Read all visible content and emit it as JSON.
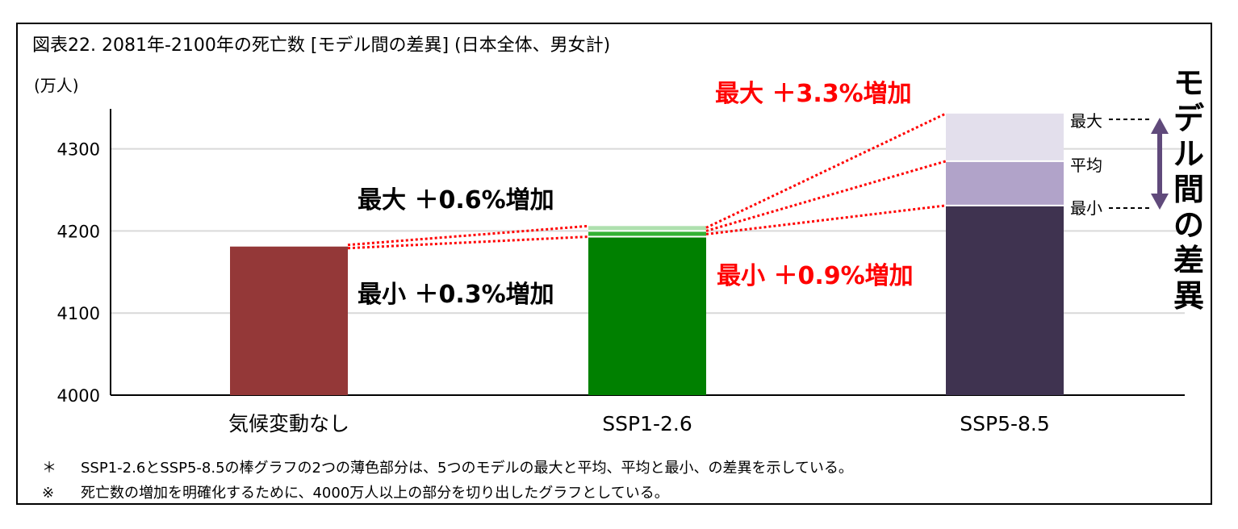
{
  "title": "図表22. 2081年-2100年の死亡数 [モデル間の差異] (日本全体、男女計)",
  "unit": "(万人)",
  "side_label": "モデル間の差異",
  "legend_labels": {
    "max": "最大",
    "avg": "平均",
    "min": "最小"
  },
  "annotations": {
    "ssp126_max": "最大 ＋0.6%増加",
    "ssp126_min": "最小 ＋0.3%増加",
    "ssp585_max": "最大 ＋3.3%増加",
    "ssp585_min": "最小 ＋0.9%増加"
  },
  "notes": [
    {
      "mark": "＊",
      "text": "SSP1-2.6とSSP5-8.5の棒グラフの2つの薄色部分は、5つのモデルの最大と平均、平均と最小、の差異を示している。"
    },
    {
      "mark": "※",
      "text": "死亡数の増加を明確化するために、4000万人以上の部分を切り出したグラフとしている。"
    }
  ],
  "chart_data": {
    "type": "bar",
    "categories": [
      "気候変動なし",
      "SSP1-2.6",
      "SSP5-8.5"
    ],
    "ylim": [
      4000,
      4350
    ],
    "yticks": [
      4000,
      4100,
      4200,
      4300
    ],
    "grid": true,
    "bars": [
      {
        "category": "気候変動なし",
        "min": 4181,
        "avg": 4181,
        "max": 4181,
        "color": "#943838",
        "mid_color": "#943838",
        "top_color": "#943838"
      },
      {
        "category": "SSP1-2.6",
        "min": 4193,
        "avg": 4200,
        "max": 4206,
        "color": "#008000",
        "mid_color": "#33b233",
        "top_color": "#aee0ae"
      },
      {
        "category": "SSP5-8.5",
        "min": 4231,
        "avg": 4285,
        "max": 4343,
        "color": "#3f3350",
        "mid_color": "#b1a3c9",
        "top_color": "#e3dfec"
      }
    ],
    "colors": {
      "annotation_red": "#ff0000",
      "arrow": "#604a7b",
      "grid": "#d9d9d9"
    }
  }
}
